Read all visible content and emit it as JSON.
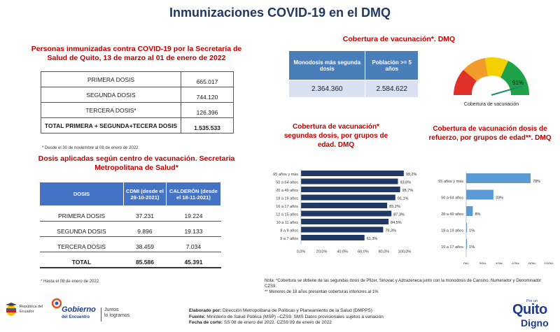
{
  "title": "Inmunizaciones COVID-19 en el DMQ",
  "left1": {
    "heading": "Personas inmunizadas contra COVID-19 por la Secretaría de Salud de Quito, 13 de marzo al 01 de enero de 2022",
    "rows": [
      {
        "label": "PRIMERA DOSIS",
        "value": "665.017"
      },
      {
        "label": "SEGUNDA DOSIS",
        "value": "744.120"
      },
      {
        "label": "TERCERA DOSIS*",
        "value": "126.396"
      },
      {
        "label": "TOTAL PRIMERA + SEGUNDA+TECERA DOSIS",
        "value": "1.535.533"
      }
    ],
    "note": "* Desde el 30 de noviembre al 08 de enero de 2022"
  },
  "left2": {
    "heading": "Dosis aplicadas según centro de vacunación. Secretaria Metropolitana de Salud*",
    "headers": [
      "DOSIS",
      "CDMI (desde el 29-10-2021)",
      "CALDERÓN (desde el 18-11-2021)"
    ],
    "rows": [
      [
        "PRIMERA DOSIS",
        "37.231",
        "19.224"
      ],
      [
        "SEGUNDA DOSIS",
        "9.896",
        "19.133"
      ],
      [
        "TERCERA DOSIS",
        "38.459",
        "7.034"
      ],
      [
        "TOTAL",
        "85.586",
        "45.391"
      ]
    ],
    "note": "* Hasta el 08 de enero de 2022"
  },
  "right1": {
    "heading": "Cobertura de vacunación*. DMQ",
    "headers": [
      "Monodosis más segunda dosis",
      "Población >= 5 años"
    ],
    "values": [
      "2.364.360",
      "2.584.622"
    ],
    "gauge_value": "91%",
    "gauge_label": "Cobertura de vacunación",
    "gauge_fraction": 0.91,
    "colors": {
      "red": "#e0302a",
      "orange": "#f29b2a",
      "yellow": "#f5d000",
      "green": "#1fa34a"
    }
  },
  "chart_data": [
    {
      "type": "bar",
      "title": "Cobertura de vacunación* segundas dosis, por grupos de edad. DMQ",
      "categories": [
        "65 años y más",
        "50 a 64 años",
        "20 a 49 años",
        "18 a 19 años",
        "16 a 17 años",
        "12 a 15 años",
        "10 a 11 años",
        "8 a 9 años",
        "5 a 7 años"
      ],
      "values": [
        99.2,
        93.6,
        95.7,
        91.1,
        83.2,
        87.3,
        84.5,
        79.3,
        61.3
      ],
      "labels": [
        "99,2%",
        "93,6%",
        "95,7%",
        "91,1%",
        "83,2%",
        "87,3%",
        "84,5%",
        "79,3%",
        "61,3%"
      ],
      "xticks": [
        "0,0%",
        "20,0%",
        "40,0%",
        "60,0%",
        "80,0%",
        "100,0%"
      ],
      "xlim": [
        0,
        100
      ],
      "color": "#1f3864"
    },
    {
      "type": "bar",
      "title": "Cobertura de vacunación dosis de refuerzo, por grupos de edad**. DMQ",
      "categories": [
        "65 años y más",
        "50 a 64 años",
        "20 a 49 años",
        "18 a 19 años",
        "16 a 17 años"
      ],
      "values": [
        78,
        33,
        8,
        1,
        1
      ],
      "labels": [
        "78%",
        "33%",
        "8%",
        "1%",
        "1%"
      ],
      "xticks": [
        "0%",
        "20%",
        "40%",
        "60%",
        "80%",
        "100%"
      ],
      "xlim": [
        0,
        100
      ],
      "color": "#5b9bd5"
    }
  ],
  "footnote": {
    "line1": "Nota: *Cobertura se obtiene de las segundas dosis de Pfizer, Sinovac y Aztrazeneca junto con la monodosis de Cansino. Numerador y Denominador CZS9.",
    "line2": "** Menores de 18 años presentan coberturas inferiores al 1%"
  },
  "credits": {
    "l1_k": "Elaborado por:",
    "l1_v": "Dirección Metropolitana de Políticas y Planeamiento de la Salud (DMPPS)",
    "l2_k": "Fuente:",
    "l2_v": "Ministerio de Salud Pública (MSP) –CZS9.  SMS Datos provisionales sujetos a variación",
    "l3_k": "Fecha de corte:",
    "l3_v": "SS 08 de enero del 2022. CZS9 09 de enero de 2022"
  },
  "logos": {
    "ecuador": "República del Ecuador",
    "gobierno_1": "Gobierno",
    "gobierno_2": "del Encuentro",
    "juntos_1": "Juntos",
    "juntos_2": "lo logramos",
    "quito_small": "Por un",
    "quito_big": "Quito",
    "quito_sub": "Digno"
  }
}
